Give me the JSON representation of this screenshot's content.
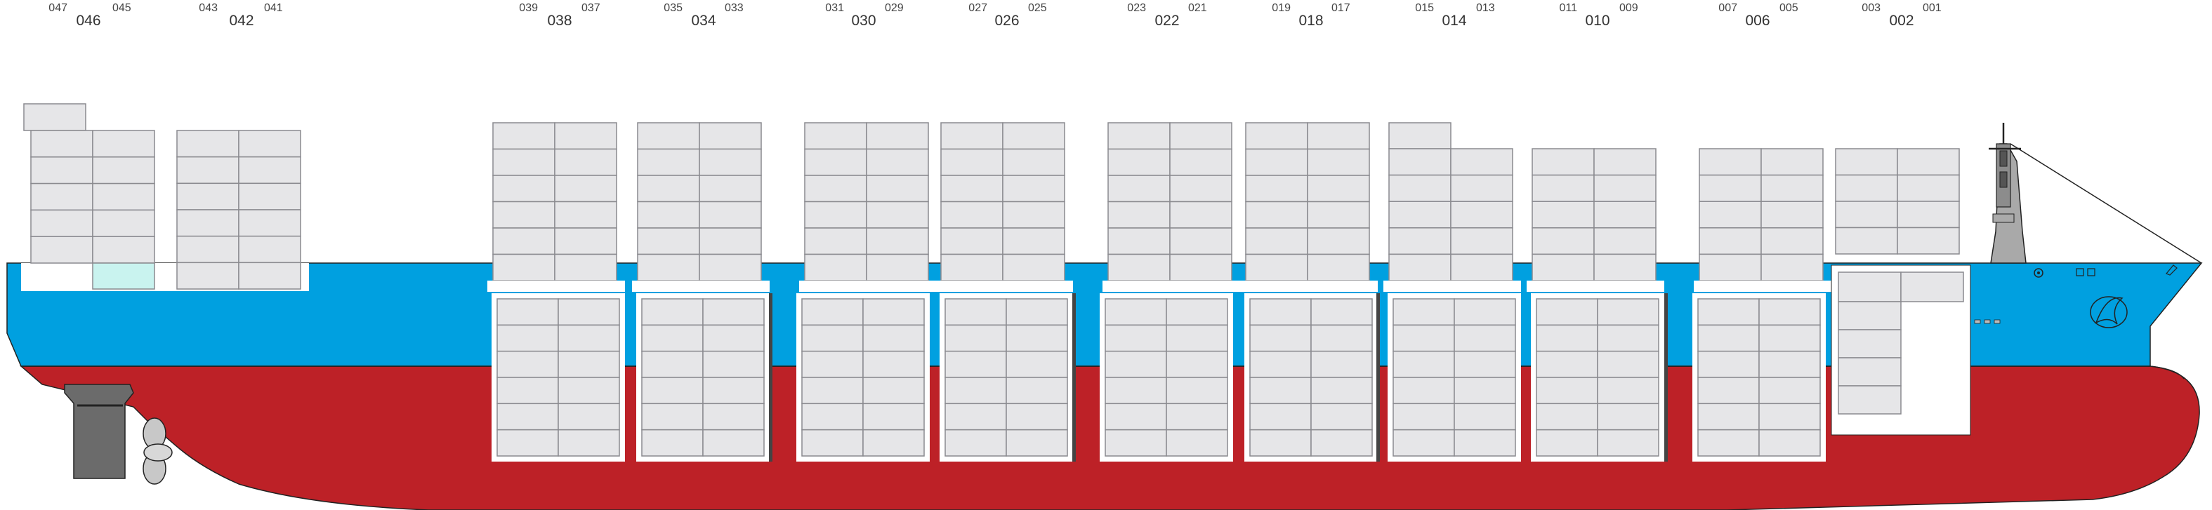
{
  "colors": {
    "hull_upper": "#00a0e0",
    "hull_lower": "#bd2127",
    "container": "#e6e6e8",
    "container_stroke": "#8a8a8f",
    "reefer_highlight": "#c9f3ef",
    "hold_bg": "#ffffff",
    "machinery": "#6b6b6b",
    "outline": "#222222"
  },
  "bays": [
    {
      "bay": "046",
      "fwd": "047",
      "aft": "045"
    },
    {
      "bay": "042",
      "fwd": "043",
      "aft": "041"
    },
    {
      "bay": "038",
      "fwd": "039",
      "aft": "037"
    },
    {
      "bay": "034",
      "fwd": "035",
      "aft": "033"
    },
    {
      "bay": "030",
      "fwd": "031",
      "aft": "029"
    },
    {
      "bay": "026",
      "fwd": "027",
      "aft": "025"
    },
    {
      "bay": "022",
      "fwd": "023",
      "aft": "021"
    },
    {
      "bay": "018",
      "fwd": "019",
      "aft": "017"
    },
    {
      "bay": "014",
      "fwd": "015",
      "aft": "013"
    },
    {
      "bay": "010",
      "fwd": "011",
      "aft": "009"
    },
    {
      "bay": "006",
      "fwd": "007",
      "aft": "005"
    },
    {
      "bay": "002",
      "fwd": "003",
      "aft": "001"
    }
  ]
}
